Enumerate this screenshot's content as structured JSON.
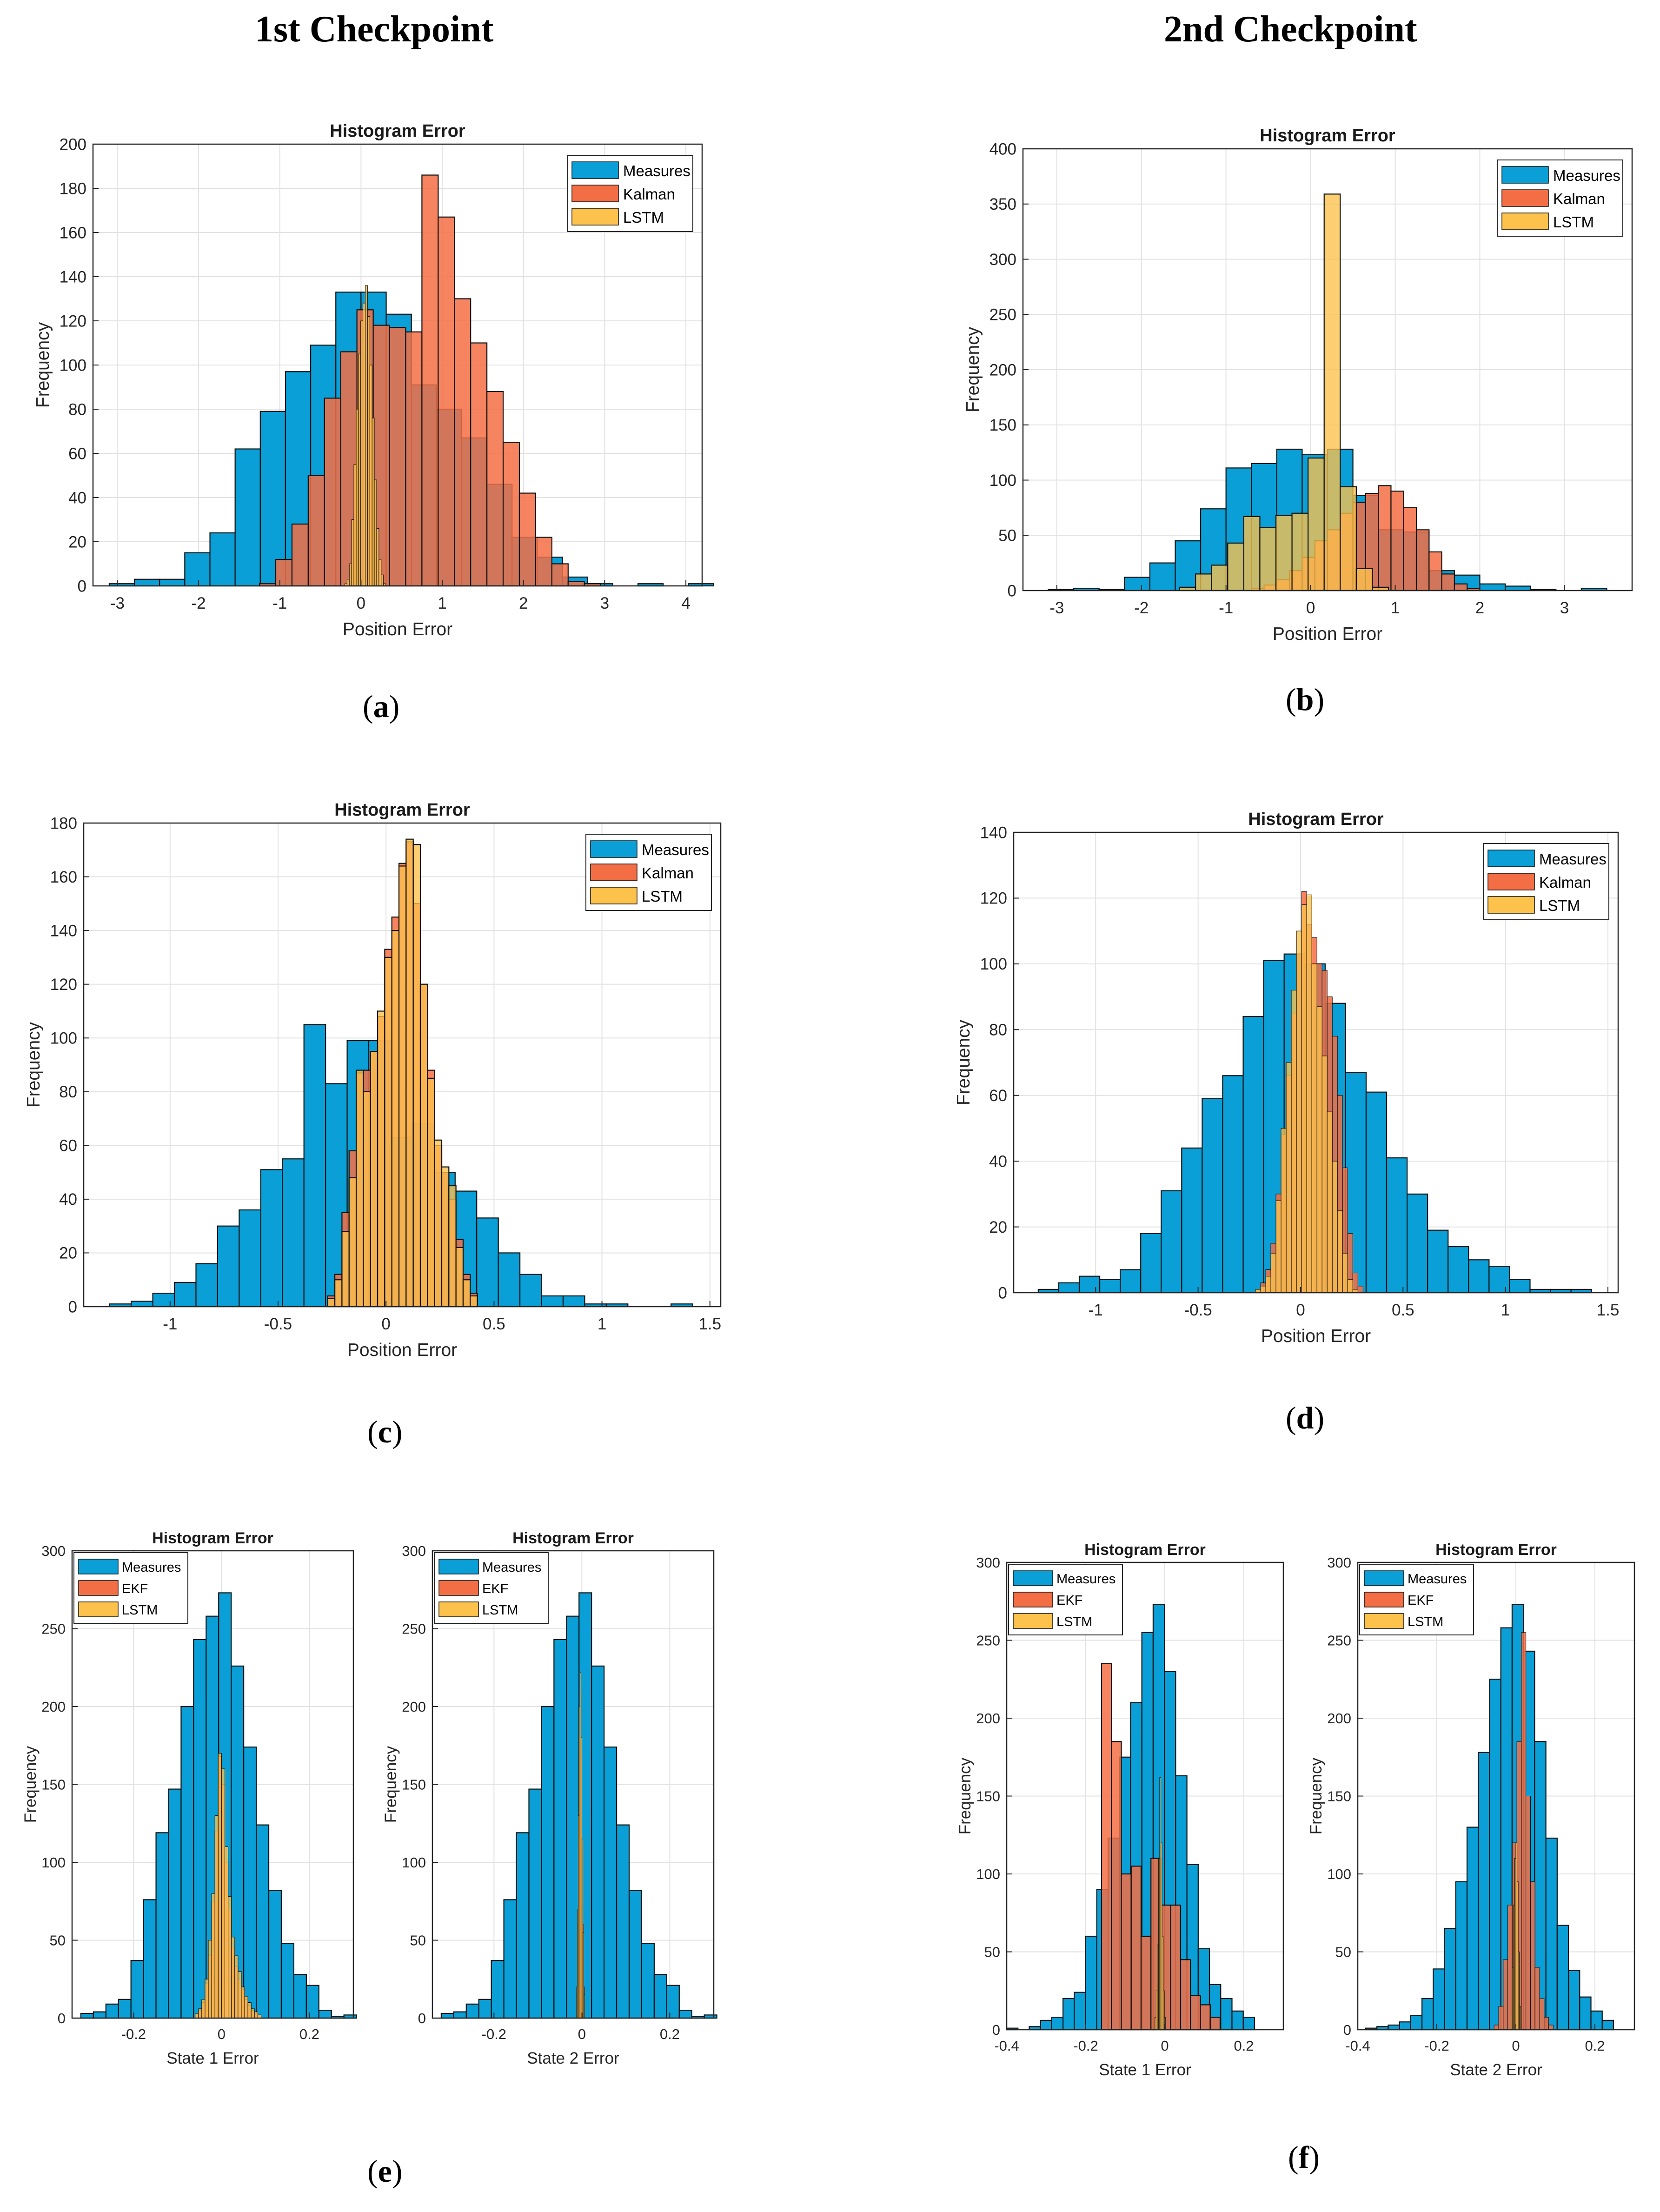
{
  "column_headers": {
    "left": "1st Checkpoint",
    "right": "2nd Checkpoint"
  },
  "panel_labels": {
    "a": "a",
    "b": "b",
    "c": "c",
    "d": "d",
    "e": "e",
    "f": "f"
  },
  "colors": {
    "Measures": "#0a9fd6",
    "Kalman": "#f46e45",
    "EKF": "#f46e45",
    "LSTM": "#fcc24c"
  },
  "chart_data": [
    {
      "id": "a",
      "type": "bar",
      "title": "Histogram Error",
      "xlabel": "Position Error",
      "ylabel": "Frequency",
      "xlim": [
        -3.3,
        4.2
      ],
      "ylim": [
        0,
        200
      ],
      "xticks": [
        -3,
        -2,
        -1,
        0,
        1,
        2,
        3,
        4
      ],
      "xtick_labels": [
        "-3",
        "-2",
        "-1",
        "0",
        "1",
        "2",
        "3",
        "4"
      ],
      "yticks": [
        0,
        20,
        40,
        60,
        80,
        100,
        120,
        140,
        160,
        180,
        200
      ],
      "ytick_labels": [
        "0",
        "20",
        "40",
        "60",
        "80",
        "100",
        "120",
        "140",
        "160",
        "180",
        "200"
      ],
      "legend": [
        "Measures",
        "Kalman",
        "LSTM"
      ],
      "series": [
        {
          "name": "Measures",
          "start": -3.1,
          "width": 0.31,
          "values": [
            1,
            3,
            3,
            15,
            24,
            62,
            79,
            97,
            109,
            133,
            133,
            123,
            91,
            80,
            67,
            46,
            22,
            13,
            4,
            1,
            0,
            1,
            0,
            1
          ]
        },
        {
          "name": "Kalman",
          "start": -1.25,
          "width": 0.2,
          "values": [
            1,
            12,
            28,
            50,
            85,
            106,
            125,
            118,
            117,
            115,
            186,
            167,
            130,
            110,
            88,
            65,
            42,
            22,
            10,
            2,
            1
          ]
        },
        {
          "name": "LSTM",
          "start": -0.2,
          "width": 0.028,
          "values": [
            1,
            3,
            10,
            30,
            55,
            80,
            105,
            120,
            128,
            136,
            122,
            100,
            76,
            48,
            26,
            12,
            5,
            1
          ]
        }
      ]
    },
    {
      "id": "b",
      "type": "bar",
      "title": "Histogram Error",
      "xlabel": "Position Error",
      "ylabel": "Frequency",
      "xlim": [
        -3.4,
        3.8
      ],
      "ylim": [
        0,
        400
      ],
      "xticks": [
        -3,
        -2,
        -1,
        0,
        1,
        2,
        3
      ],
      "xtick_labels": [
        "-3",
        "-2",
        "-1",
        "0",
        "1",
        "2",
        "3"
      ],
      "yticks": [
        0,
        50,
        100,
        150,
        200,
        250,
        300,
        350,
        400
      ],
      "ytick_labels": [
        "0",
        "50",
        "100",
        "150",
        "200",
        "250",
        "300",
        "350",
        "400"
      ],
      "legend": [
        "Measures",
        "Kalman",
        "LSTM"
      ],
      "series": [
        {
          "name": "Measures",
          "start": -3.1,
          "width": 0.3,
          "values": [
            1,
            2,
            1,
            12,
            25,
            45,
            74,
            111,
            115,
            128,
            123,
            128,
            86,
            55,
            53,
            18,
            14,
            6,
            4,
            1,
            0,
            2
          ]
        },
        {
          "name": "Kalman",
          "start": -0.7,
          "width": 0.15,
          "values": [
            2,
            5,
            10,
            18,
            30,
            45,
            55,
            70,
            80,
            88,
            95,
            90,
            75,
            55,
            35,
            15,
            6,
            2
          ]
        },
        {
          "name": "LSTM",
          "start": -1.55,
          "width": 0.19,
          "values": [
            3,
            15,
            23,
            43,
            67,
            57,
            68,
            70,
            120,
            359,
            94,
            20,
            3
          ]
        }
      ]
    },
    {
      "id": "c",
      "type": "bar",
      "title": "Histogram Error",
      "xlabel": "Position Error",
      "ylabel": "Frequency",
      "xlim": [
        -1.4,
        1.55
      ],
      "ylim": [
        0,
        180
      ],
      "xticks": [
        -1,
        -0.5,
        0,
        0.5,
        1,
        1.5
      ],
      "xtick_labels": [
        "-1",
        "-0.5",
        "0",
        "0.5",
        "1",
        "1.5"
      ],
      "yticks": [
        0,
        20,
        40,
        60,
        80,
        100,
        120,
        140,
        160,
        180
      ],
      "ytick_labels": [
        "0",
        "20",
        "40",
        "60",
        "80",
        "100",
        "120",
        "140",
        "160",
        "180"
      ],
      "legend": [
        "Measures",
        "Kalman",
        "LSTM"
      ],
      "series": [
        {
          "name": "Measures",
          "start": -1.28,
          "width": 0.1,
          "values": [
            1,
            2,
            5,
            9,
            16,
            30,
            36,
            51,
            55,
            105,
            83,
            99,
            99,
            63,
            68,
            50,
            43,
            33,
            20,
            12,
            4,
            4,
            1,
            1,
            0,
            0,
            1
          ]
        },
        {
          "name": "Kalman",
          "start": -0.27,
          "width": 0.033,
          "values": [
            4,
            12,
            35,
            58,
            87,
            88,
            95,
            108,
            133,
            145,
            165,
            173,
            150,
            120,
            88,
            60,
            50,
            40,
            25,
            12,
            5
          ]
        },
        {
          "name": "LSTM",
          "start": -0.27,
          "width": 0.033,
          "values": [
            3,
            10,
            28,
            48,
            88,
            80,
            95,
            110,
            130,
            140,
            164,
            174,
            172,
            120,
            85,
            62,
            52,
            45,
            22,
            10,
            4
          ]
        }
      ]
    },
    {
      "id": "d",
      "type": "bar",
      "title": "Histogram Error",
      "xlabel": "Position Error",
      "ylabel": "Frequency",
      "xlim": [
        -1.4,
        1.55
      ],
      "ylim": [
        0,
        140
      ],
      "xticks": [
        -1,
        -0.5,
        0,
        0.5,
        1,
        1.5
      ],
      "xtick_labels": [
        "-1",
        "-0.5",
        "0",
        "0.5",
        "1",
        "1.5"
      ],
      "yticks": [
        0,
        20,
        40,
        60,
        80,
        100,
        120,
        140
      ],
      "ytick_labels": [
        "0",
        "20",
        "40",
        "60",
        "80",
        "100",
        "120",
        "140"
      ],
      "legend": [
        "Measures",
        "Kalman",
        "LSTM"
      ],
      "series": [
        {
          "name": "Measures",
          "start": -1.28,
          "width": 0.1,
          "values": [
            1,
            3,
            5,
            4,
            7,
            18,
            31,
            44,
            59,
            66,
            84,
            101,
            103,
            100,
            88,
            67,
            61,
            41,
            30,
            19,
            14,
            10,
            8,
            4,
            1,
            1,
            1
          ]
        },
        {
          "name": "Kalman",
          "start": -0.22,
          "width": 0.025,
          "values": [
            1,
            3,
            7,
            15,
            30,
            48,
            66,
            85,
            103,
            122,
            112,
            108,
            100,
            98,
            90,
            78,
            60,
            38,
            18,
            6,
            2
          ]
        },
        {
          "name": "LSTM",
          "start": -0.22,
          "width": 0.025,
          "values": [
            1,
            2,
            5,
            12,
            28,
            50,
            70,
            92,
            110,
            118,
            121,
            100,
            87,
            72,
            55,
            40,
            25,
            12,
            4,
            1
          ]
        }
      ]
    },
    {
      "id": "e1",
      "type": "bar",
      "title": "Histogram Error",
      "xlabel": "State 1 Error",
      "ylabel": "Frequency",
      "xlim": [
        -0.34,
        0.3
      ],
      "ylim": [
        0,
        300
      ],
      "xticks": [
        -0.2,
        0,
        0.2
      ],
      "xtick_labels": [
        "-0.2",
        "0",
        "0.2"
      ],
      "yticks": [
        0,
        50,
        100,
        150,
        200,
        250,
        300
      ],
      "ytick_labels": [
        "0",
        "50",
        "100",
        "150",
        "200",
        "250",
        "300"
      ],
      "legend": [
        "Measures",
        "EKF",
        "LSTM"
      ],
      "series": [
        {
          "name": "Measures",
          "start": -0.32,
          "width": 0.0285,
          "values": [
            3,
            4,
            9,
            12,
            37,
            76,
            119,
            147,
            200,
            243,
            258,
            273,
            226,
            174,
            124,
            82,
            48,
            28,
            21,
            5,
            1,
            2
          ]
        },
        {
          "name": "EKF",
          "start": -0.06,
          "width": 0.0075,
          "values": [
            2,
            5,
            10,
            22,
            40,
            75,
            120,
            168,
            150,
            100,
            70,
            45,
            33,
            25,
            18,
            12,
            8,
            5,
            3,
            2
          ]
        },
        {
          "name": "LSTM",
          "start": -0.06,
          "width": 0.0075,
          "values": [
            3,
            6,
            12,
            25,
            50,
            80,
            130,
            170,
            160,
            110,
            78,
            52,
            40,
            30,
            20,
            14,
            10,
            6,
            4,
            2
          ]
        }
      ]
    },
    {
      "id": "e2",
      "type": "bar",
      "title": "Histogram Error",
      "xlabel": "State 2 Error",
      "ylabel": "Frequency",
      "xlim": [
        -0.34,
        0.3
      ],
      "ylim": [
        0,
        300
      ],
      "xticks": [
        -0.2,
        0,
        0.2
      ],
      "xtick_labels": [
        "-0.2",
        "0",
        "0.2"
      ],
      "yticks": [
        0,
        50,
        100,
        150,
        200,
        250,
        300
      ],
      "ytick_labels": [
        "0",
        "50",
        "100",
        "150",
        "200",
        "250",
        "300"
      ],
      "legend": [
        "Measures",
        "EKF",
        "LSTM"
      ],
      "series": [
        {
          "name": "Measures",
          "start": -0.32,
          "width": 0.0285,
          "values": [
            3,
            4,
            9,
            12,
            37,
            76,
            119,
            147,
            200,
            243,
            258,
            273,
            226,
            174,
            124,
            82,
            48,
            28,
            21,
            5,
            1,
            2
          ]
        },
        {
          "name": "EKF",
          "start": -0.012,
          "width": 0.002,
          "values": [
            15,
            60,
            120,
            180,
            210,
            170,
            110,
            60,
            20
          ]
        },
        {
          "name": "LSTM",
          "start": -0.012,
          "width": 0.002,
          "values": [
            20,
            70,
            130,
            200,
            222,
            180,
            115,
            55,
            15
          ]
        }
      ]
    },
    {
      "id": "f1",
      "type": "bar",
      "title": "Histogram Error",
      "xlabel": "State 1 Error",
      "ylabel": "Frequency",
      "xlim": [
        -0.4,
        0.3
      ],
      "ylim": [
        0,
        300
      ],
      "xticks": [
        -0.4,
        -0.2,
        0,
        0.2
      ],
      "xtick_labels": [
        "-0.4",
        "-0.2",
        "0",
        "0.2"
      ],
      "yticks": [
        0,
        50,
        100,
        150,
        200,
        250,
        300
      ],
      "ytick_labels": [
        "0",
        "50",
        "100",
        "150",
        "200",
        "250",
        "300"
      ],
      "legend": [
        "Measures",
        "EKF",
        "LSTM"
      ],
      "series": [
        {
          "name": "Measures",
          "start": -0.4,
          "width": 0.0285,
          "values": [
            1,
            0,
            2,
            6,
            8,
            20,
            24,
            60,
            90,
            123,
            175,
            210,
            255,
            273,
            230,
            163,
            106,
            52,
            29,
            20,
            12,
            8
          ]
        },
        {
          "name": "EKF",
          "start": -0.16,
          "width": 0.025,
          "values": [
            235,
            185,
            100,
            105,
            60,
            110,
            80,
            80,
            45,
            22,
            16,
            8
          ]
        },
        {
          "name": "LSTM",
          "start": -0.025,
          "width": 0.003,
          "values": [
            8,
            25,
            55,
            110,
            162,
            120,
            60,
            25,
            8
          ]
        }
      ]
    },
    {
      "id": "f2",
      "type": "bar",
      "title": "Histogram Error",
      "xlabel": "State 2 Error",
      "ylabel": "Frequency",
      "xlim": [
        -0.4,
        0.3
      ],
      "ylim": [
        0,
        300
      ],
      "xticks": [
        -0.4,
        -0.2,
        0,
        0.2
      ],
      "xtick_labels": [
        "-0.4",
        "-0.2",
        "0",
        "0.2"
      ],
      "yticks": [
        0,
        50,
        100,
        150,
        200,
        250,
        300
      ],
      "ytick_labels": [
        "0",
        "50",
        "100",
        "150",
        "200",
        "250",
        "300"
      ],
      "legend": [
        "Measures",
        "EKF",
        "LSTM"
      ],
      "series": [
        {
          "name": "Measures",
          "start": -0.38,
          "width": 0.0285,
          "values": [
            1,
            2,
            3,
            5,
            9,
            20,
            39,
            65,
            95,
            130,
            178,
            225,
            258,
            273,
            243,
            185,
            123,
            67,
            38,
            21,
            12,
            6
          ]
        },
        {
          "name": "EKF",
          "start": -0.055,
          "width": 0.0115,
          "values": [
            3,
            15,
            45,
            80,
            120,
            185,
            255,
            150,
            95,
            40,
            20,
            8,
            3
          ]
        },
        {
          "name": "LSTM",
          "start": -0.012,
          "width": 0.003,
          "values": [
            10,
            40,
            80,
            110,
            120,
            95,
            50,
            15
          ]
        }
      ]
    }
  ]
}
